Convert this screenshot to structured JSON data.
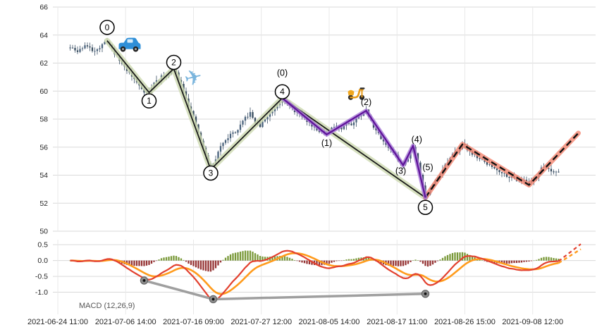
{
  "chart_data": {
    "type": "candlestick",
    "title": "",
    "panels": [
      "price",
      "macd"
    ],
    "price_axis": {
      "min": 50,
      "max": 66,
      "ticks": [
        66,
        64,
        62,
        60,
        58,
        56,
        54,
        52,
        50
      ]
    },
    "macd_axis": {
      "min": -1.7,
      "max": 0.66,
      "ticks": [
        0.5,
        0.0,
        -0.5,
        -1.0
      ]
    },
    "x_axis": {
      "ticks": [
        {
          "pos": 2,
          "label": "2021-06-24 11:00"
        },
        {
          "pos": 29.5,
          "label": "2021-07-06 14:00"
        },
        {
          "pos": 57,
          "label": "2021-07-16 09:00"
        },
        {
          "pos": 84.5,
          "label": "2021-07-27 12:00"
        },
        {
          "pos": 112,
          "label": "2021-08-05 14:00"
        },
        {
          "pos": 139.5,
          "label": "2021-08-17 11:00"
        },
        {
          "pos": 167,
          "label": "2021-08-26 15:00"
        },
        {
          "pos": 194.5,
          "label": "2021-09-08 12:00"
        }
      ]
    },
    "candles": {
      "start": 7,
      "end": 205,
      "color_up": "#49627c",
      "color_down": "#374b5e",
      "price_path": [
        [
          7,
          63.1
        ],
        [
          10,
          62.8
        ],
        [
          13,
          63.3
        ],
        [
          16,
          62.9
        ],
        [
          19,
          63.1
        ],
        [
          22,
          63.6
        ],
        [
          24,
          63.0
        ],
        [
          27,
          62.2
        ],
        [
          31,
          61.3
        ],
        [
          34,
          60.6
        ],
        [
          37,
          60.0
        ],
        [
          39,
          59.9
        ],
        [
          41,
          60.6
        ],
        [
          44,
          61.0
        ],
        [
          47,
          61.2
        ],
        [
          49,
          61.6
        ],
        [
          51,
          60.9
        ],
        [
          53,
          60.1
        ],
        [
          55,
          59.0
        ],
        [
          58,
          57.6
        ],
        [
          61,
          55.9
        ],
        [
          64,
          54.4
        ],
        [
          66,
          55.2
        ],
        [
          69,
          56.4
        ],
        [
          72,
          56.9
        ],
        [
          75,
          57.2
        ],
        [
          78,
          58.1
        ],
        [
          80,
          58.4
        ],
        [
          82,
          57.8
        ],
        [
          84,
          57.5
        ],
        [
          86,
          58.0
        ],
        [
          89,
          58.6
        ],
        [
          93,
          59.5
        ],
        [
          95,
          59.1
        ],
        [
          98,
          58.6
        ],
        [
          101,
          58.2
        ],
        [
          104,
          57.7
        ],
        [
          107,
          57.3
        ],
        [
          111,
          56.9
        ],
        [
          113,
          57.3
        ],
        [
          115,
          57.6
        ],
        [
          117,
          57.3
        ],
        [
          119,
          57.8
        ],
        [
          121,
          57.6
        ],
        [
          124,
          58.2
        ],
        [
          127,
          58.6
        ],
        [
          129,
          57.8
        ],
        [
          132,
          56.9
        ],
        [
          135,
          56.2
        ],
        [
          138,
          55.6
        ],
        [
          140,
          55.1
        ],
        [
          142,
          54.7
        ],
        [
          144,
          55.3
        ],
        [
          146,
          56.1
        ],
        [
          148,
          55.0
        ],
        [
          151,
          52.4
        ],
        [
          153,
          53.0
        ],
        [
          156,
          53.9
        ],
        [
          159,
          54.7
        ],
        [
          162,
          55.4
        ],
        [
          166,
          56.2
        ],
        [
          169,
          55.7
        ],
        [
          172,
          55.3
        ],
        [
          176,
          54.8
        ],
        [
          180,
          54.4
        ],
        [
          184,
          54.0
        ],
        [
          188,
          53.7
        ],
        [
          193,
          53.5
        ],
        [
          196,
          53.9
        ],
        [
          199,
          54.7
        ],
        [
          202,
          54.3
        ],
        [
          205,
          54.3
        ]
      ]
    },
    "elliott_waves": {
      "major": {
        "points": [
          [
            22,
            63.6
          ],
          [
            39,
            59.9
          ],
          [
            49,
            61.6
          ],
          [
            64,
            54.4
          ],
          [
            93,
            59.5
          ],
          [
            151,
            52.4
          ]
        ],
        "line_color": "#1a1a1a",
        "glow_color": "#cdd9b0"
      },
      "minor": {
        "points": [
          [
            93,
            59.5
          ],
          [
            111,
            56.9
          ],
          [
            127,
            58.6
          ],
          [
            142,
            54.7
          ],
          [
            146,
            56.1
          ],
          [
            151,
            52.4
          ]
        ],
        "line_color": "#5e1299",
        "glow_color": "#a678d6"
      },
      "forecast": {
        "points": [
          [
            151,
            52.4
          ],
          [
            166,
            56.2
          ],
          [
            193,
            53.3
          ],
          [
            213,
            57.0
          ]
        ],
        "line_color": "#111111",
        "glow_color": "#f4846f",
        "dashed": true
      }
    },
    "wave_labels": [
      {
        "text": "0",
        "pos": [
          22,
          64.55
        ],
        "circled": true
      },
      {
        "text": "1",
        "pos": [
          39,
          59.3
        ],
        "circled": true
      },
      {
        "text": "2",
        "pos": [
          49,
          62.05
        ],
        "circled": true
      },
      {
        "text": "3",
        "pos": [
          64,
          54.15
        ],
        "circled": true
      },
      {
        "text": "4",
        "pos": [
          93,
          59.95
        ],
        "circled": true
      },
      {
        "text": "5",
        "pos": [
          151,
          51.7
        ],
        "circled": true
      },
      {
        "text": "(0)",
        "pos": [
          93,
          61.3
        ],
        "circled": false
      },
      {
        "text": "(1)",
        "pos": [
          111,
          56.3
        ],
        "circled": false
      },
      {
        "text": "(2)",
        "pos": [
          127,
          59.2
        ],
        "circled": false
      },
      {
        "text": "(3)",
        "pos": [
          141,
          54.3
        ],
        "circled": false
      },
      {
        "text": "(4)",
        "pos": [
          147.5,
          56.55
        ],
        "circled": false
      },
      {
        "text": "(5)",
        "pos": [
          152,
          54.55
        ],
        "circled": false
      }
    ],
    "emojis": [
      {
        "name": "car",
        "pos": [
          31,
          63.2
        ]
      },
      {
        "name": "airplane",
        "pos": [
          57,
          60.9
        ]
      },
      {
        "name": "scooter",
        "pos": [
          123,
          59.9
        ]
      }
    ],
    "macd": {
      "label": "MACD (12,26,9)",
      "params": [
        12,
        26,
        9
      ],
      "pos_color": "#6b8e23",
      "neg_color": "#8b1f1f",
      "macd_color": "#e2402e",
      "signal_color": "#ff9b1c",
      "scale": 0.75,
      "divergence": {
        "points": [
          [
            37,
            -0.63
          ],
          [
            65,
            -1.22
          ],
          [
            151,
            -1.05
          ]
        ],
        "color": "#9a9a9a"
      },
      "forecast_ext": {
        "macd_to": [
          214,
          0.52
        ],
        "signal_to": [
          214,
          0.36
        ]
      }
    }
  }
}
